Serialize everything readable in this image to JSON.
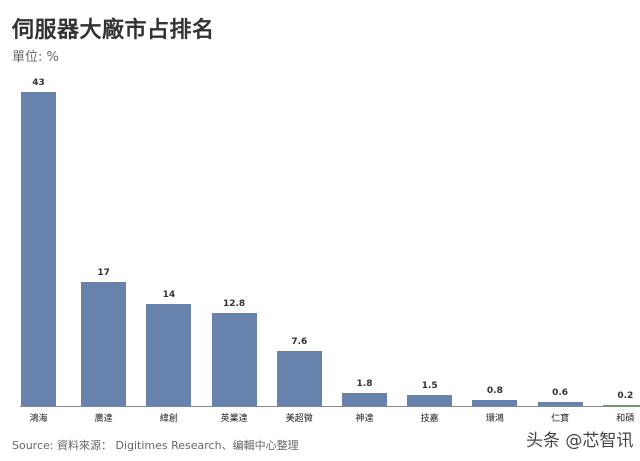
{
  "header": {
    "title": "伺服器大廠市占排名",
    "unit": "單位: %"
  },
  "footer": {
    "source": "Source: 資料來源： Digitimes Research、编輯中心整理",
    "watermark": "头条 @芯智讯"
  },
  "style": {
    "bar_color": "#6782AD",
    "axis_color": "#888888"
  },
  "chart_data": {
    "type": "bar",
    "title": "伺服器大廠市占排名",
    "subtitle": "單位: %",
    "xlabel": "",
    "ylabel": "%",
    "categories": [
      "鴻海",
      "廣達",
      "緯創",
      "英業達",
      "美超微",
      "神達",
      "技嘉",
      "環鴻",
      "仁寶",
      "和碩"
    ],
    "values": [
      43,
      17,
      14,
      12.8,
      7.6,
      1.8,
      1.5,
      0.8,
      0.6,
      0.2
    ],
    "value_labels": [
      "43",
      "17",
      "14",
      "12.8",
      "7.6",
      "1.8",
      "1.5",
      "0.8",
      "0.6",
      "0.2"
    ],
    "ylim": [
      0,
      43
    ],
    "grid": false,
    "legend": "none",
    "data_labels": true,
    "source": "Source: 資料來源： Digitimes Research、编輯中心整理"
  }
}
